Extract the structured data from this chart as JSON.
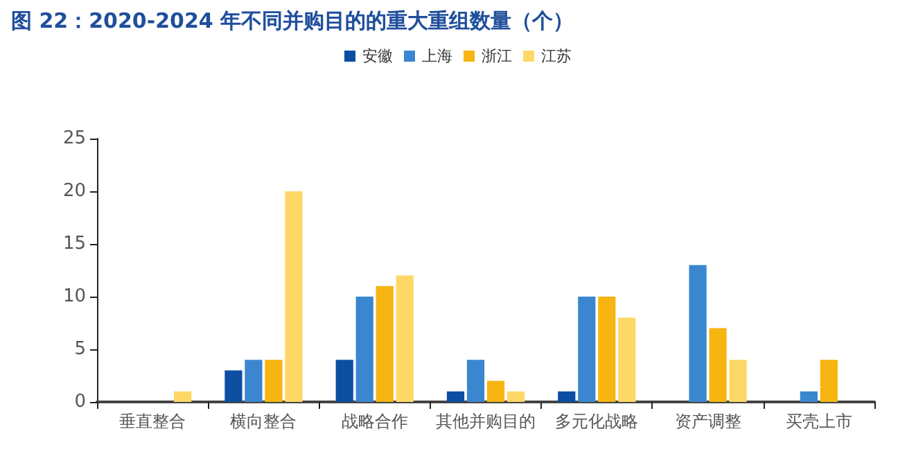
{
  "chart_data": {
    "type": "bar",
    "title": "图 22：2020-2024 年不同并购目的的重大重组数量（个）",
    "categories": [
      "垂直整合",
      "横向整合",
      "战略合作",
      "其他并购目的",
      "多元化战略",
      "资产调整",
      "买壳上市"
    ],
    "series": [
      {
        "name": "安徽",
        "color": "#0b4ea2",
        "values": [
          0,
          3,
          4,
          1,
          1,
          0,
          0
        ]
      },
      {
        "name": "上海",
        "color": "#3a87d0",
        "values": [
          0,
          4,
          10,
          4,
          10,
          13,
          1
        ]
      },
      {
        "name": "浙江",
        "color": "#f7b512",
        "values": [
          0,
          4,
          11,
          2,
          10,
          7,
          4
        ]
      },
      {
        "name": "江苏",
        "color": "#fdd866",
        "values": [
          1,
          20,
          12,
          1,
          8,
          4,
          0
        ]
      }
    ],
    "ylim": [
      0,
      25
    ],
    "yticks": [
      0,
      5,
      10,
      15,
      20,
      25
    ],
    "grid": false,
    "legend": "top"
  }
}
